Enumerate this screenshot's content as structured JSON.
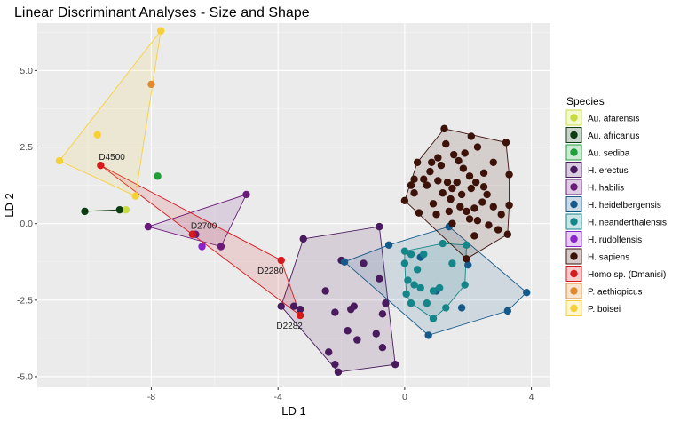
{
  "chart_data": {
    "type": "scatter",
    "title": "Linear Discriminant Analyses - Size and Shape",
    "xlabel": "LD 1",
    "ylabel": "LD 2",
    "xlim": [
      -11.6,
      4.6
    ],
    "ylim": [
      -5.35,
      6.55
    ],
    "xticks": [
      -8,
      -4,
      0,
      4
    ],
    "yticks": [
      -5.0,
      -2.5,
      0.0,
      2.5,
      5.0
    ],
    "xtick_labels": [
      "-8",
      "-4",
      "0",
      "4"
    ],
    "ytick_labels": [
      "-5.0",
      "-2.5",
      "0.0",
      "2.5",
      "5.0"
    ],
    "grid": true,
    "hulls": true,
    "legend_title": "Species",
    "legend_position": "right",
    "series": [
      {
        "name": "Au. afarensis",
        "color": "#c8dc3c",
        "points": [
          [
            -8.8,
            0.45
          ]
        ]
      },
      {
        "name": "Au. africanus",
        "color": "#0d3d12",
        "points": [
          [
            -10.1,
            0.4
          ],
          [
            -9.0,
            0.45
          ]
        ]
      },
      {
        "name": "Au. sediba",
        "color": "#1f9e3a",
        "points": [
          [
            -7.8,
            1.55
          ]
        ]
      },
      {
        "name": "H. erectus",
        "color": "#4a1a5e",
        "points": [
          [
            -3.2,
            -0.5
          ],
          [
            -2.0,
            -1.2
          ],
          [
            -0.8,
            -0.1
          ],
          [
            -1.3,
            -1.3
          ],
          [
            -2.5,
            -2.2
          ],
          [
            -0.8,
            -1.8
          ],
          [
            -1.6,
            -2.7
          ],
          [
            -2.2,
            -2.9
          ],
          [
            -1.7,
            -2.8
          ],
          [
            -0.6,
            -2.6
          ],
          [
            -0.7,
            -2.95
          ],
          [
            -1.8,
            -3.5
          ],
          [
            -1.5,
            -3.8
          ],
          [
            -0.9,
            -3.6
          ],
          [
            -0.7,
            -4.05
          ],
          [
            -2.4,
            -4.2
          ],
          [
            -2.2,
            -4.6
          ],
          [
            -2.1,
            -4.85
          ],
          [
            -0.3,
            -4.6
          ],
          [
            -3.3,
            -2.8
          ],
          [
            -3.5,
            -2.7
          ],
          [
            -3.9,
            -2.7
          ]
        ]
      },
      {
        "name": "H. habilis",
        "color": "#6a1b7a",
        "points": [
          [
            -8.1,
            -0.1
          ],
          [
            -5.8,
            -0.75
          ],
          [
            -5.0,
            0.95
          ],
          [
            -6.6,
            -0.35
          ]
        ]
      },
      {
        "name": "H. heidelbergensis",
        "color": "#155a8a",
        "points": [
          [
            -1.9,
            -1.25
          ],
          [
            -0.5,
            -0.7
          ],
          [
            0.5,
            -1.1
          ],
          [
            1.4,
            -0.1
          ],
          [
            2.0,
            -1.35
          ],
          [
            3.85,
            -2.25
          ],
          [
            3.25,
            -2.85
          ],
          [
            1.8,
            -2.75
          ],
          [
            0.75,
            -3.65
          ],
          [
            1.0,
            -2.2
          ]
        ]
      },
      {
        "name": "H. neanderthalensis",
        "color": "#14868a",
        "points": [
          [
            0.0,
            -0.9
          ],
          [
            0.4,
            -1.5
          ],
          [
            0.5,
            -2.1
          ],
          [
            0.9,
            -2.2
          ],
          [
            1.1,
            -2.1
          ],
          [
            0.7,
            -2.6
          ],
          [
            0.2,
            -2.6
          ],
          [
            0.9,
            -3.1
          ],
          [
            1.3,
            -2.75
          ],
          [
            1.9,
            -2.0
          ],
          [
            1.5,
            -1.3
          ],
          [
            1.2,
            -0.65
          ],
          [
            0.1,
            -1.85
          ],
          [
            0.2,
            -1.0
          ],
          [
            1.95,
            -0.7
          ],
          [
            0.3,
            -2.0
          ],
          [
            0.0,
            -1.3
          ],
          [
            0.05,
            -2.3
          ],
          [
            0.6,
            -1.0
          ]
        ]
      },
      {
        "name": "H. rudolfensis",
        "color": "#8a23cc",
        "points": [
          [
            -6.4,
            -0.75
          ]
        ]
      },
      {
        "name": "H. sapiens",
        "color": "#3d1208",
        "points": [
          [
            1.25,
            3.1
          ],
          [
            2.1,
            2.85
          ],
          [
            3.2,
            2.65
          ],
          [
            3.3,
            1.6
          ],
          [
            3.3,
            0.6
          ],
          [
            3.25,
            -0.35
          ],
          [
            1.95,
            -1.15
          ],
          [
            0.0,
            0.75
          ],
          [
            0.3,
            1.0
          ],
          [
            0.2,
            1.25
          ],
          [
            0.3,
            1.45
          ],
          [
            0.6,
            1.45
          ],
          [
            0.7,
            1.25
          ],
          [
            0.9,
            0.65
          ],
          [
            1.05,
            1.4
          ],
          [
            0.8,
            1.7
          ],
          [
            0.4,
            2.0
          ],
          [
            0.85,
            2.0
          ],
          [
            1.15,
            1.9
          ],
          [
            1.55,
            2.25
          ],
          [
            1.7,
            2.05
          ],
          [
            1.9,
            2.3
          ],
          [
            1.85,
            1.8
          ],
          [
            2.05,
            1.55
          ],
          [
            1.65,
            1.35
          ],
          [
            1.35,
            1.35
          ],
          [
            1.2,
            1.0
          ],
          [
            1.45,
            0.8
          ],
          [
            1.75,
            0.55
          ],
          [
            1.95,
            0.4
          ],
          [
            2.2,
            0.5
          ],
          [
            2.45,
            0.7
          ],
          [
            2.6,
            0.95
          ],
          [
            2.5,
            1.2
          ],
          [
            2.25,
            1.35
          ],
          [
            2.1,
            1.15
          ],
          [
            2.3,
            0.1
          ],
          [
            2.65,
            -0.05
          ],
          [
            2.95,
            -0.2
          ],
          [
            3.05,
            0.3
          ],
          [
            2.8,
            0.55
          ],
          [
            2.5,
            1.65
          ],
          [
            2.8,
            2.0
          ],
          [
            2.3,
            2.5
          ],
          [
            1.3,
            2.6
          ],
          [
            1.05,
            2.15
          ],
          [
            0.45,
            0.35
          ],
          [
            1.0,
            0.3
          ],
          [
            1.5,
            0.0
          ],
          [
            1.4,
            0.4
          ],
          [
            1.5,
            1.15
          ],
          [
            1.8,
            0.95
          ],
          [
            2.05,
            0.15
          ],
          [
            2.2,
            -0.4
          ]
        ]
      },
      {
        "name": "Homo sp. (Dmanisi)",
        "color": "#d7191c",
        "points": [
          [
            -9.6,
            1.9
          ],
          [
            -6.7,
            -0.35
          ],
          [
            -3.9,
            -1.2
          ],
          [
            -3.3,
            -3.0
          ]
        ]
      },
      {
        "name": "P. aethiopicus",
        "color": "#e08a30",
        "points": [
          [
            -8.0,
            4.55
          ]
        ]
      },
      {
        "name": "P. boisei",
        "color": "#f7d038",
        "points": [
          [
            -7.7,
            6.3
          ],
          [
            -9.7,
            2.9
          ],
          [
            -10.9,
            2.05
          ],
          [
            -8.5,
            0.9
          ]
        ]
      }
    ],
    "hull_series": [
      "Au. africanus",
      "H. erectus",
      "H. habilis",
      "H. heidelbergensis",
      "H. neanderthalensis",
      "H. sapiens",
      "Homo sp. (Dmanisi)",
      "P. boisei"
    ],
    "annotations": [
      {
        "text": "D4500",
        "x": -9.6,
        "y": 1.9
      },
      {
        "text": "D2700",
        "x": -6.7,
        "y": -0.35
      },
      {
        "text": "D2280",
        "x": -3.9,
        "y": -1.2
      },
      {
        "text": "D2282",
        "x": -3.3,
        "y": -3.0
      }
    ]
  }
}
